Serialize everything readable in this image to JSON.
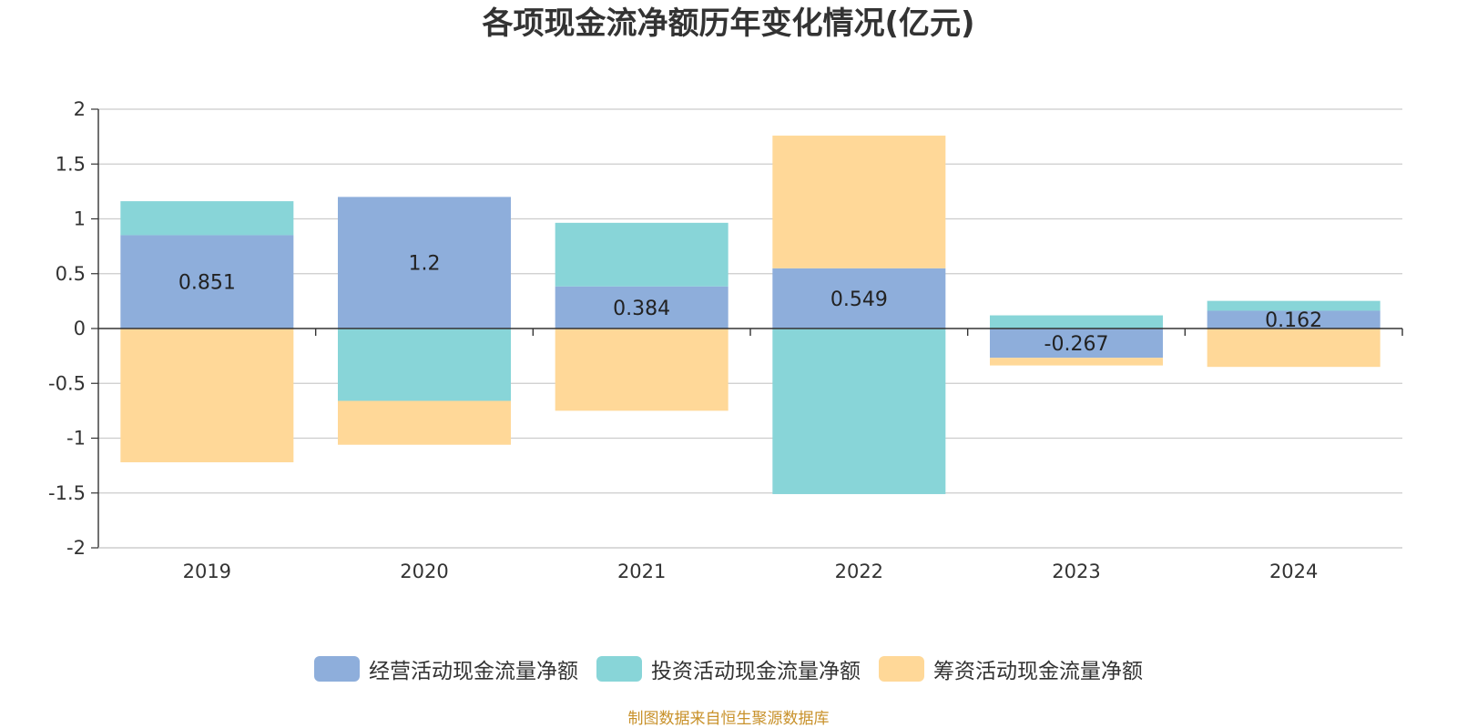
{
  "chart_data": {
    "type": "bar",
    "stacked": true,
    "title": "各项现金流净额历年变化情况(亿元)",
    "categories": [
      "2019",
      "2020",
      "2021",
      "2022",
      "2023",
      "2024"
    ],
    "ylim": [
      -2,
      2
    ],
    "yticks": [
      "2",
      "1.5",
      "1",
      "0.5",
      "0",
      "-0.5",
      "-1",
      "-1.5",
      "-2"
    ],
    "ytick_values": [
      2,
      1.5,
      1,
      0.5,
      0,
      -0.5,
      -1,
      -1.5,
      -2
    ],
    "grid": true,
    "legend_position": "bottom",
    "series": [
      {
        "name": "经营活动现金流量净额",
        "color": "#8eaedb",
        "values": [
          0.851,
          1.2,
          0.384,
          0.549,
          -0.267,
          0.162
        ],
        "labels": [
          "0.851",
          "1.2",
          "0.384",
          "0.549",
          "-0.267",
          "0.162"
        ]
      },
      {
        "name": "投资活动现金流量净额",
        "color": "#88d5d8",
        "values": [
          0.31,
          -0.66,
          0.58,
          -1.51,
          0.12,
          0.09
        ]
      },
      {
        "name": "筹资活动现金流量净额",
        "color": "#ffd898",
        "values": [
          -1.22,
          -0.4,
          -0.75,
          1.21,
          -0.07,
          -0.35
        ]
      }
    ]
  },
  "source": "制图数据来自恒生聚源数据库"
}
